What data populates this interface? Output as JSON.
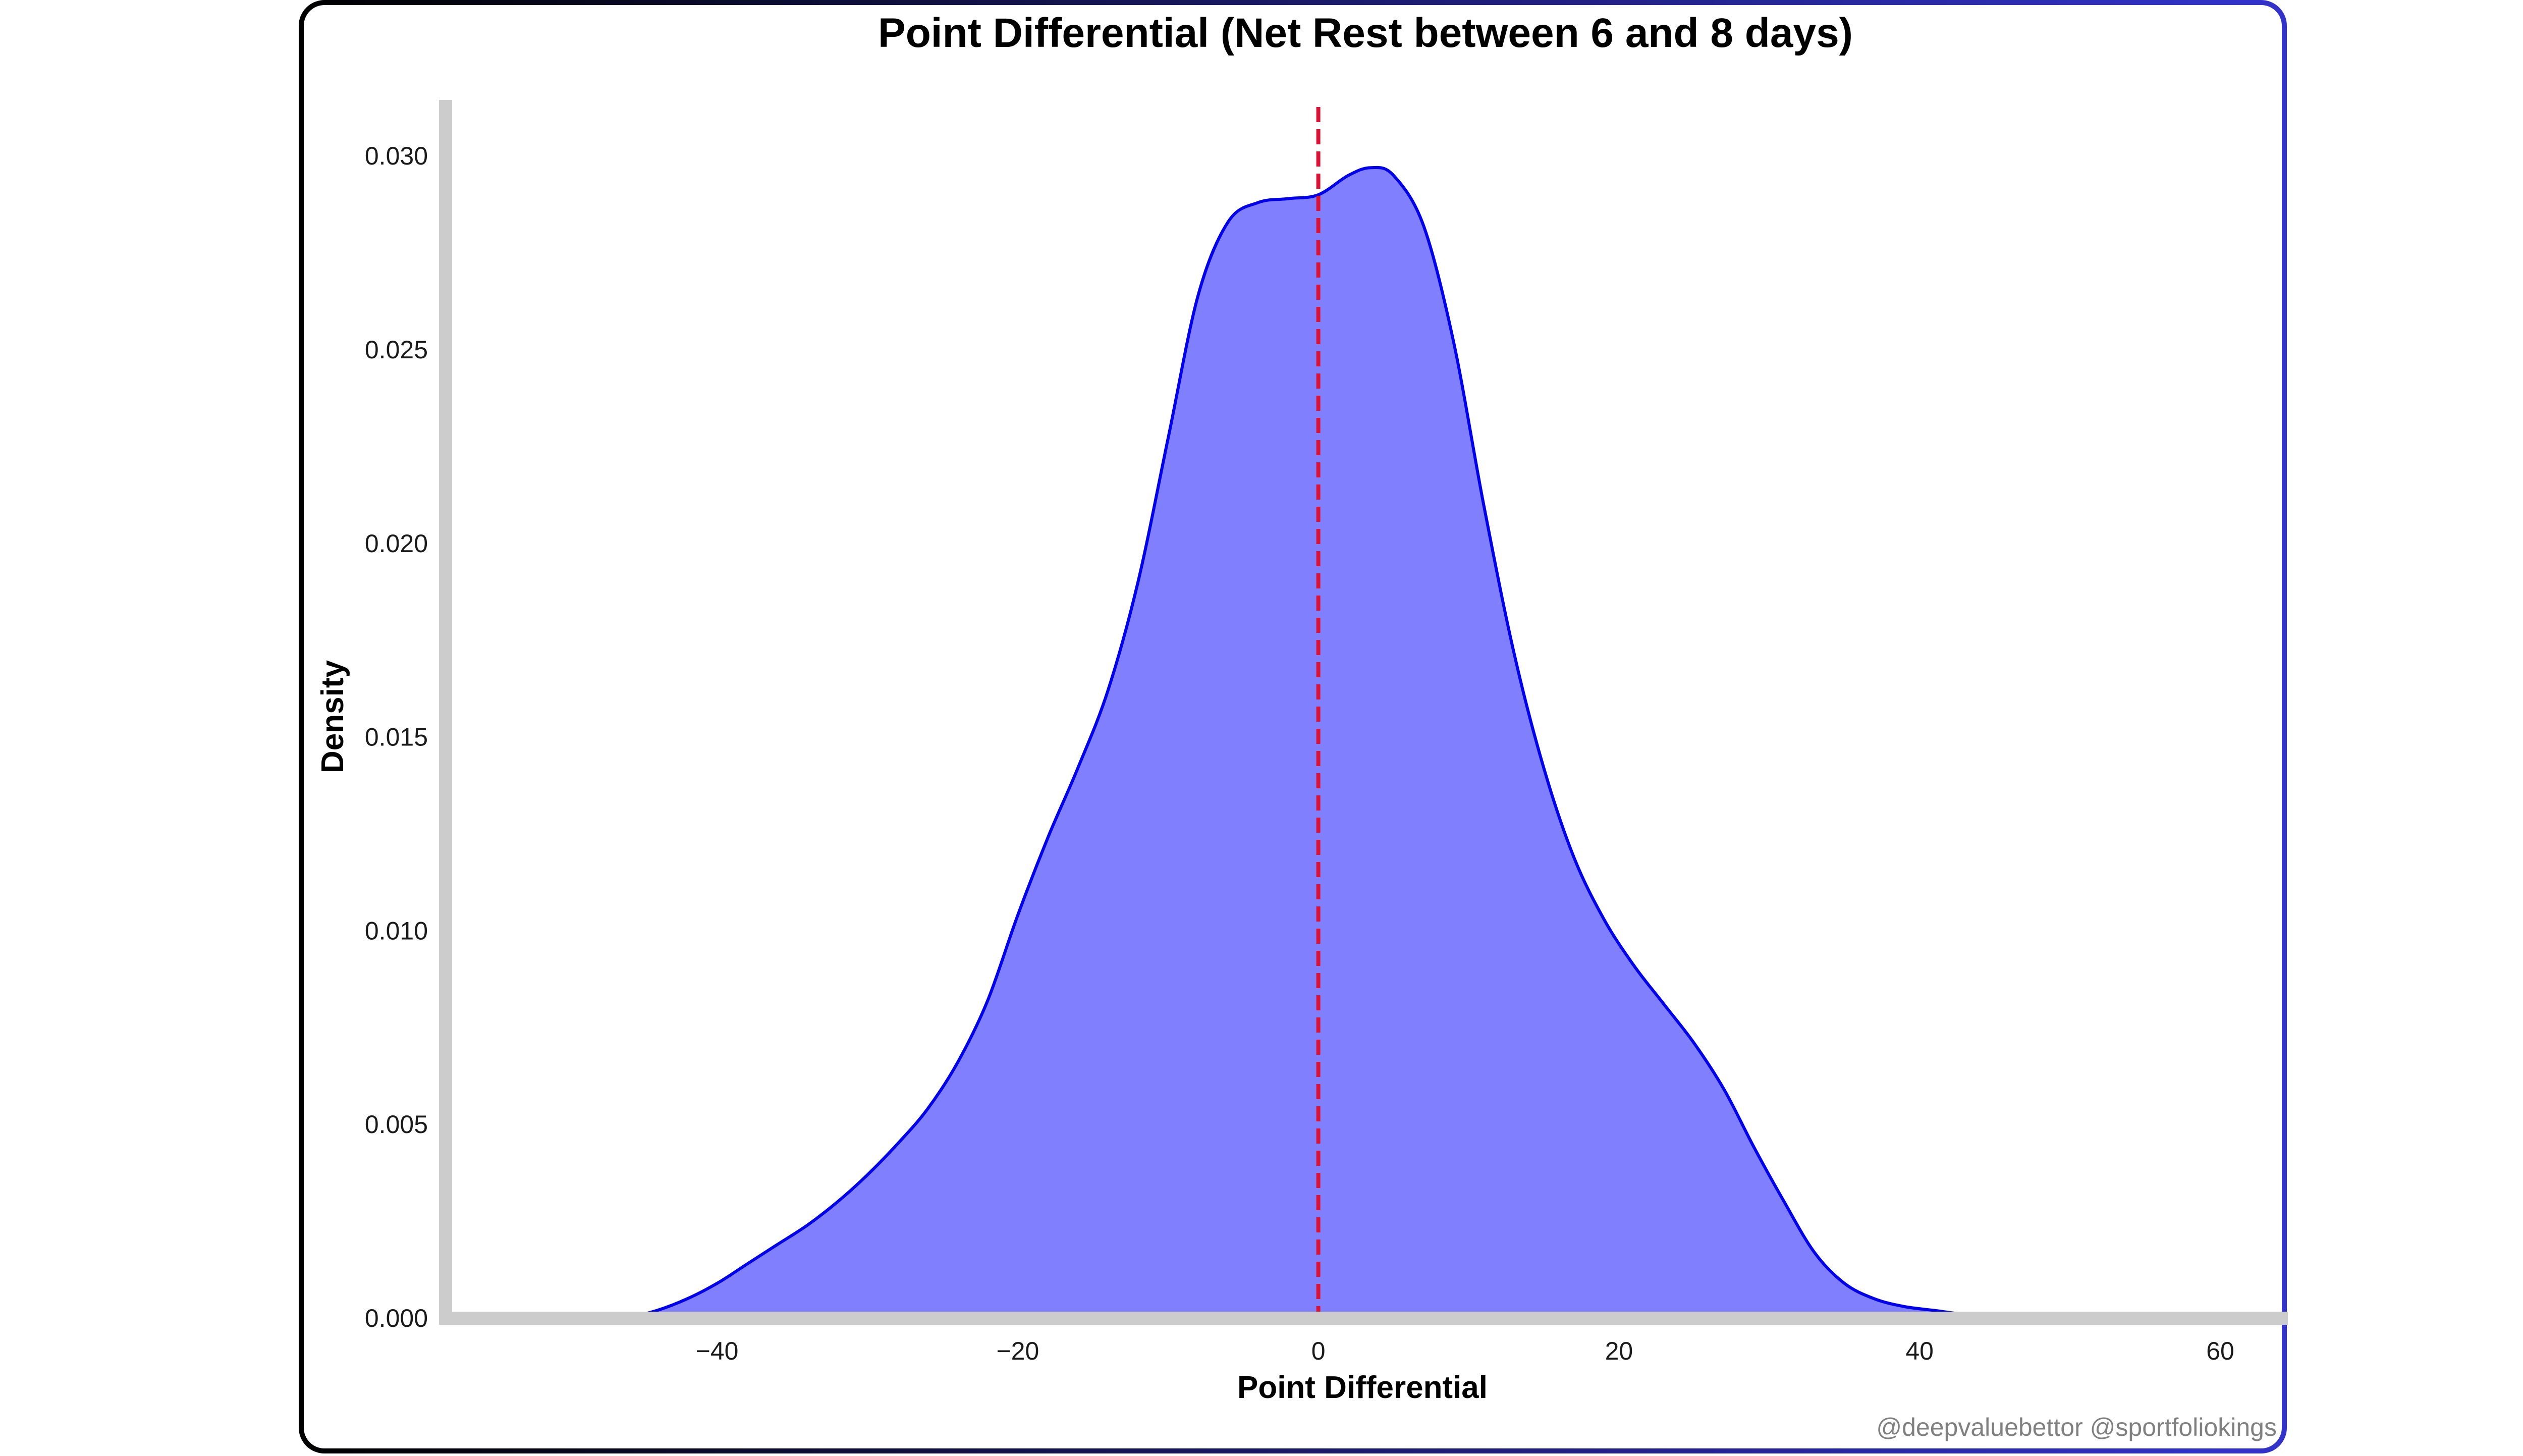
{
  "chart_data": {
    "type": "area",
    "title": "Point Differential (Net Rest between 6 and 8 days)",
    "xlabel": "Point Differential",
    "ylabel": "Density",
    "xlim": [
      -58.5,
      64.5
    ],
    "ylim": [
      0,
      0.0315
    ],
    "x_ticks": [
      -40,
      -20,
      0,
      20,
      40,
      60
    ],
    "x_tick_labels": [
      "−40",
      "−20",
      "0",
      "20",
      "40",
      "60"
    ],
    "y_ticks": [
      0.0,
      0.005,
      0.01,
      0.015,
      0.02,
      0.025,
      0.03
    ],
    "y_tick_labels": [
      "0.000",
      "0.005",
      "0.010",
      "0.015",
      "0.020",
      "0.025",
      "0.030"
    ],
    "grid": false,
    "series": [
      {
        "fill_color": "#8080ff",
        "line_color": "#0000ee",
        "x": [
          -46,
          -44,
          -42,
          -40,
          -38,
          -36,
          -34,
          -32,
          -30,
          -28,
          -26,
          -24,
          -22,
          -20,
          -18,
          -16,
          -14,
          -12,
          -10,
          -8,
          -6,
          -4,
          -2,
          0,
          2,
          3.5,
          5,
          7,
          9,
          11,
          13,
          15,
          17,
          19,
          21,
          23,
          25,
          27,
          29,
          31,
          33,
          35,
          37,
          39,
          41,
          43,
          45,
          47,
          49.5
        ],
        "y": [
          0.0,
          0.0002,
          0.0005,
          0.0009,
          0.0014,
          0.0019,
          0.0024,
          0.003,
          0.0037,
          0.0045,
          0.0054,
          0.0066,
          0.0082,
          0.0104,
          0.0124,
          0.0142,
          0.0162,
          0.019,
          0.0227,
          0.0264,
          0.0283,
          0.0288,
          0.0289,
          0.029,
          0.0295,
          0.0297,
          0.0295,
          0.0282,
          0.0252,
          0.021,
          0.0172,
          0.0142,
          0.0119,
          0.0103,
          0.0091,
          0.0081,
          0.0071,
          0.0059,
          0.0044,
          0.003,
          0.0017,
          0.0009,
          0.0005,
          0.0003,
          0.0002,
          0.0001,
          5e-05,
          2e-05,
          0.0
        ]
      }
    ],
    "reference_lines": [
      {
        "orientation": "vertical",
        "x": 0,
        "color": "#dd1133",
        "style": "dashed"
      }
    ]
  },
  "footer": {
    "credit": "@deepvaluebettor @sportfoliokings"
  },
  "colors": {
    "frame_left": "#000000",
    "frame_right": "#3333cc",
    "axis": "#cccccc",
    "credit": "#808080"
  }
}
